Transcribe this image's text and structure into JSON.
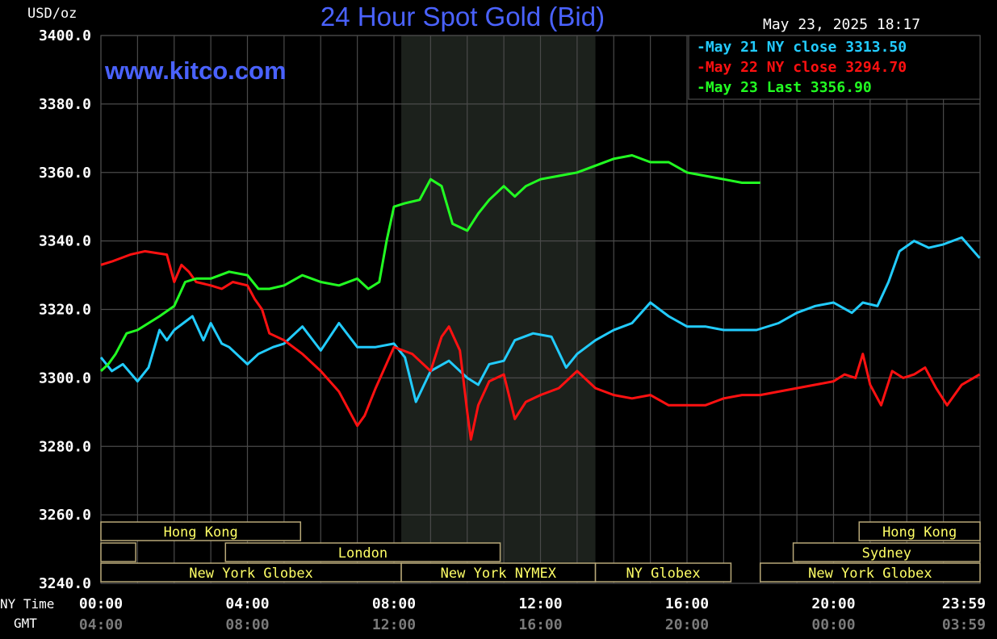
{
  "chart_data": {
    "type": "line",
    "title": "24 Hour Spot Gold (Bid)",
    "ylabel": "USD/oz",
    "timestamp": "May 23, 2025 18:17",
    "watermark": "www.kitco.com",
    "ylim": [
      3240,
      3400
    ],
    "yticks": [
      "3400.0",
      "3380.0",
      "3360.0",
      "3340.0",
      "3320.0",
      "3300.0",
      "3280.0",
      "3260.0",
      "3240.0"
    ],
    "ytick_values": [
      3400,
      3380,
      3360,
      3340,
      3320,
      3300,
      3280,
      3260,
      3240
    ],
    "xlim": [
      0,
      24
    ],
    "xaxis_label_ny": "NY Time",
    "xaxis_label_gmt": "GMT",
    "xticks_ny": [
      "00:00",
      "04:00",
      "08:00",
      "12:00",
      "16:00",
      "20:00",
      "23:59"
    ],
    "xticks_gmt": [
      "04:00",
      "08:00",
      "12:00",
      "16:00",
      "20:00",
      "00:00",
      "03:59"
    ],
    "xtick_hours": [
      0,
      4,
      8,
      12,
      16,
      20,
      24
    ],
    "grid": true,
    "legend_position": "top-right",
    "legend": [
      {
        "label": "May 21 NY close",
        "value": "3313.50",
        "color": "#22ccff"
      },
      {
        "label": "May 22 NY close",
        "value": "3294.70",
        "color": "#ff1111"
      },
      {
        "label": "May 23 Last",
        "value": "3356.90",
        "color": "#22ff22"
      }
    ],
    "shaded_range_hours": [
      8.2,
      13.5
    ],
    "series": [
      {
        "name": "May 21",
        "color": "#22ccff",
        "x": [
          0,
          0.3,
          0.6,
          1.0,
          1.3,
          1.6,
          1.8,
          2.0,
          2.5,
          2.8,
          3.0,
          3.3,
          3.5,
          4.0,
          4.3,
          4.7,
          5.0,
          5.5,
          6.0,
          6.5,
          7.0,
          7.5,
          8.0,
          8.3,
          8.6,
          9.0,
          9.5,
          10.0,
          10.3,
          10.6,
          11.0,
          11.3,
          11.8,
          12.3,
          12.7,
          13.0,
          13.5,
          14.0,
          14.5,
          15.0,
          15.5,
          16.0,
          16.5,
          17.0,
          17.5,
          17.9,
          18.5,
          19.0,
          19.5,
          20.0,
          20.5,
          20.8,
          21.2,
          21.5,
          21.8,
          22.2,
          22.6,
          23.0,
          23.5,
          23.99
        ],
        "y": [
          3306,
          3302,
          3304,
          3299,
          3303,
          3314,
          3311,
          3314,
          3318,
          3311,
          3316,
          3310,
          3309,
          3304,
          3307,
          3309,
          3310,
          3315,
          3308,
          3316,
          3309,
          3309,
          3310,
          3306,
          3293,
          3302,
          3305,
          3300,
          3298,
          3304,
          3305,
          3311,
          3313,
          3312,
          3303,
          3307,
          3311,
          3314,
          3316,
          3322,
          3318,
          3315,
          3315,
          3314,
          3314,
          3314,
          3316,
          3319,
          3321,
          3322,
          3319,
          3322,
          3321,
          3328,
          3337,
          3340,
          3338,
          3339,
          3341,
          3335
        ]
      },
      {
        "name": "May 22",
        "color": "#ff1111",
        "x": [
          0,
          0.3,
          0.8,
          1.2,
          1.8,
          2.0,
          2.2,
          2.4,
          2.6,
          3.0,
          3.3,
          3.6,
          4.0,
          4.2,
          4.4,
          4.6,
          5.0,
          5.5,
          6.0,
          6.5,
          7.0,
          7.2,
          7.5,
          8.0,
          8.5,
          9.0,
          9.3,
          9.5,
          9.8,
          10.0,
          10.1,
          10.3,
          10.6,
          11.0,
          11.3,
          11.6,
          12.0,
          12.5,
          13.0,
          13.5,
          14.0,
          14.5,
          15.0,
          15.5,
          16.0,
          16.5,
          17.0,
          17.5,
          18.0,
          18.5,
          19.0,
          19.5,
          20.0,
          20.3,
          20.6,
          20.8,
          21.0,
          21.3,
          21.6,
          21.9,
          22.2,
          22.5,
          22.8,
          23.1,
          23.5,
          23.99
        ],
        "y": [
          3333,
          3334,
          3336,
          3337,
          3336,
          3328,
          3333,
          3331,
          3328,
          3327,
          3326,
          3328,
          3327,
          3323,
          3320,
          3313,
          3311,
          3307,
          3302,
          3296,
          3286,
          3289,
          3297,
          3309,
          3307,
          3302,
          3312,
          3315,
          3308,
          3290,
          3282,
          3292,
          3299,
          3301,
          3288,
          3293,
          3295,
          3297,
          3302,
          3297,
          3295,
          3294,
          3295,
          3292,
          3292,
          3292,
          3294,
          3295,
          3295,
          3296,
          3297,
          3298,
          3299,
          3301,
          3300,
          3307,
          3298,
          3292,
          3302,
          3300,
          3301,
          3303,
          3297,
          3292,
          3298,
          3301
        ]
      },
      {
        "name": "May 23",
        "color": "#22ff22",
        "x": [
          0,
          0.2,
          0.4,
          0.7,
          1.0,
          1.3,
          1.6,
          2.0,
          2.3,
          2.6,
          3.0,
          3.5,
          4.0,
          4.3,
          4.6,
          5.0,
          5.5,
          6.0,
          6.5,
          7.0,
          7.3,
          7.6,
          7.8,
          8.0,
          8.3,
          8.7,
          9.0,
          9.3,
          9.6,
          10.0,
          10.3,
          10.6,
          11.0,
          11.3,
          11.6,
          12.0,
          12.5,
          13.0,
          13.5,
          14.0,
          14.5,
          15.0,
          15.5,
          16.0,
          16.5,
          17.0,
          17.5,
          18.0
        ],
        "y": [
          3302,
          3304,
          3307,
          3313,
          3314,
          3316,
          3318,
          3321,
          3328,
          3329,
          3329,
          3331,
          3330,
          3326,
          3326,
          3327,
          3330,
          3328,
          3327,
          3329,
          3326,
          3328,
          3340,
          3350,
          3351,
          3352,
          3358,
          3356,
          3345,
          3343,
          3348,
          3352,
          3356,
          3353,
          3356,
          3358,
          3359,
          3360,
          3362,
          3364,
          3365,
          3363,
          3363,
          3360,
          3359,
          3358,
          3357,
          3357
        ]
      }
    ],
    "sessions": [
      {
        "label": "Hong Kong",
        "row": 0,
        "start": 0,
        "end": 5.45,
        "show_label": true
      },
      {
        "label": "",
        "row": 1,
        "start": 0,
        "end": 0.95,
        "show_label": false
      },
      {
        "label": "London",
        "row": 1,
        "start": 3.4,
        "end": 10.9,
        "show_label": true
      },
      {
        "label": "New York Globex",
        "row": 2,
        "start": 0,
        "end": 8.2,
        "show_label": true
      },
      {
        "label": "New York NYMEX",
        "row": 2,
        "start": 8.2,
        "end": 13.5,
        "show_label": true
      },
      {
        "label": "NY Globex",
        "row": 2,
        "start": 13.5,
        "end": 17.2,
        "show_label": true
      },
      {
        "label": "Hong Kong",
        "row": 0,
        "start": 20.7,
        "end": 24,
        "show_label": true
      },
      {
        "label": "Sydney",
        "row": 1,
        "start": 18.9,
        "end": 24,
        "show_label": true
      },
      {
        "label": "New York Globex",
        "row": 2,
        "start": 18,
        "end": 24,
        "show_label": true
      }
    ],
    "colors": {
      "background": "#000000",
      "grid": "#4a4a4a",
      "shade": "#1c211c",
      "title": "#4a62ff",
      "watermark": "#4a62ff",
      "text": "#ffffff",
      "gmt_text": "#7a7a7a",
      "session_border": "#b8a878",
      "session_text": "#ffff66"
    }
  }
}
